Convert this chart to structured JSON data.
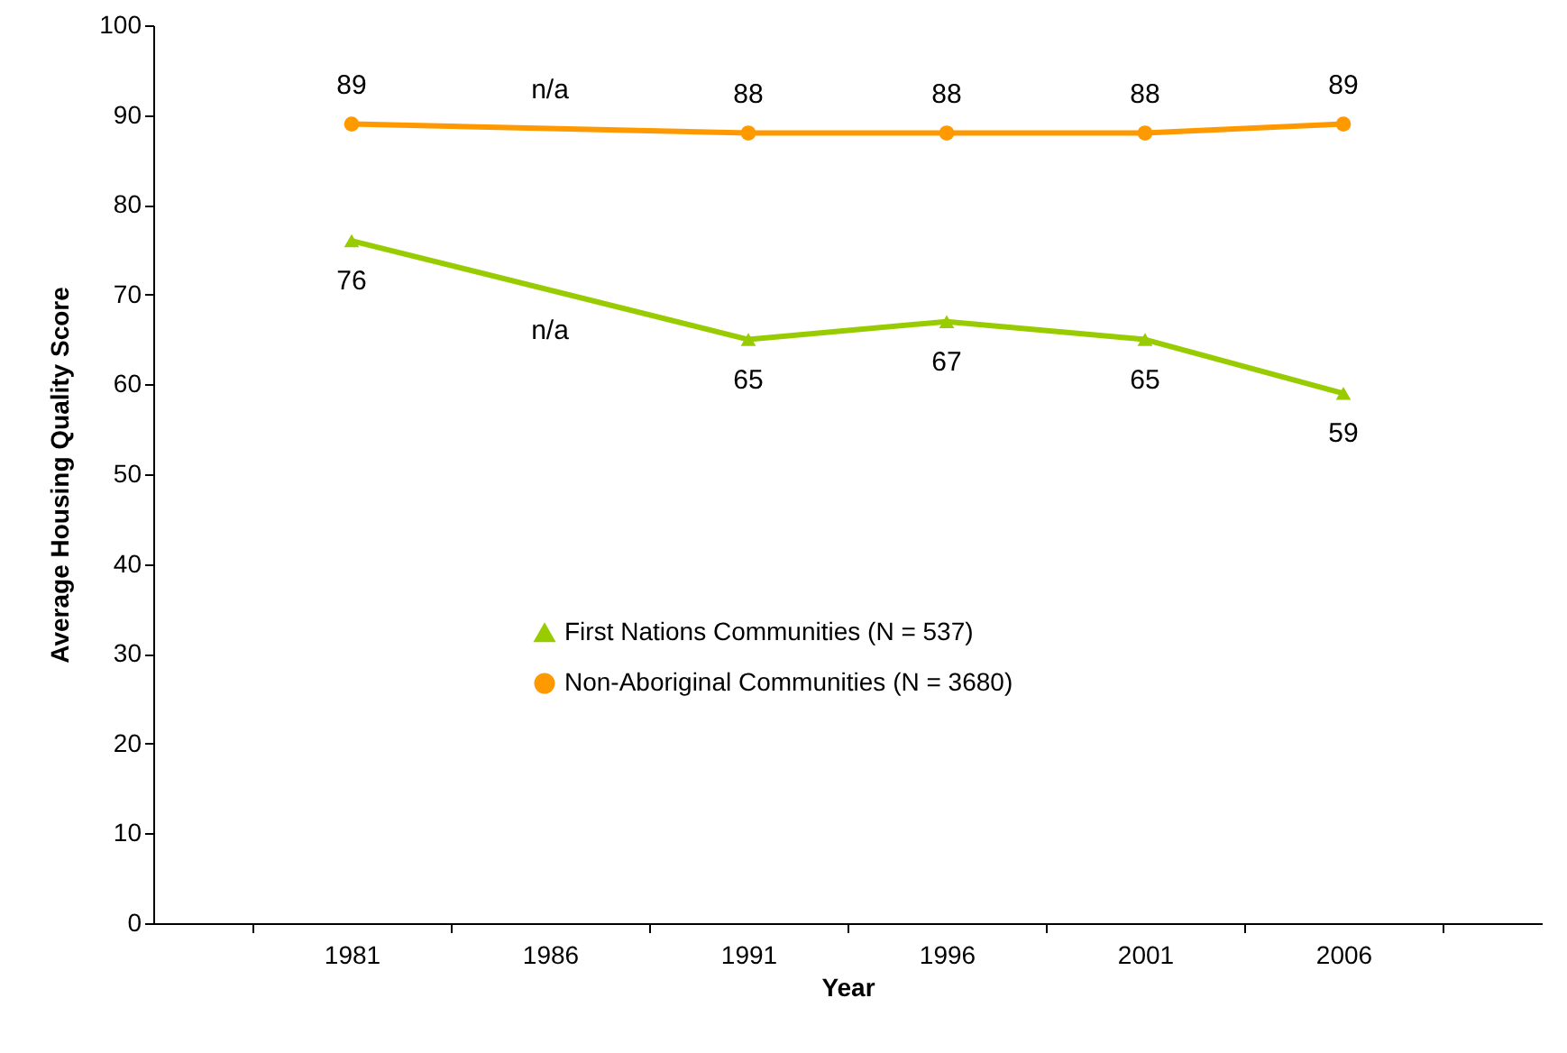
{
  "chart_data": {
    "type": "line",
    "xlabel": "Year",
    "ylabel": "Average Housing Quality Score",
    "categories": [
      "1981",
      "1986",
      "1991",
      "1996",
      "2001",
      "2006"
    ],
    "ylim": [
      0,
      100
    ],
    "yticks": [
      0,
      10,
      20,
      30,
      40,
      50,
      60,
      70,
      80,
      90,
      100
    ],
    "grid": false,
    "legend": "center",
    "series": [
      {
        "name": "First Nations Communities (N = 537)",
        "color": "#99cc00",
        "marker": "triangle",
        "values": [
          76,
          null,
          65,
          67,
          65,
          59
        ],
        "value_labels": [
          "76",
          "n/a",
          "65",
          "67",
          "65",
          "59"
        ]
      },
      {
        "name": "Non-Aboriginal Communities (N = 3680)",
        "color": "#ff9900",
        "marker": "circle",
        "values": [
          89,
          null,
          88,
          88,
          88,
          89
        ],
        "value_labels": [
          "89",
          "n/a",
          "88",
          "88",
          "88",
          "89"
        ]
      }
    ]
  }
}
